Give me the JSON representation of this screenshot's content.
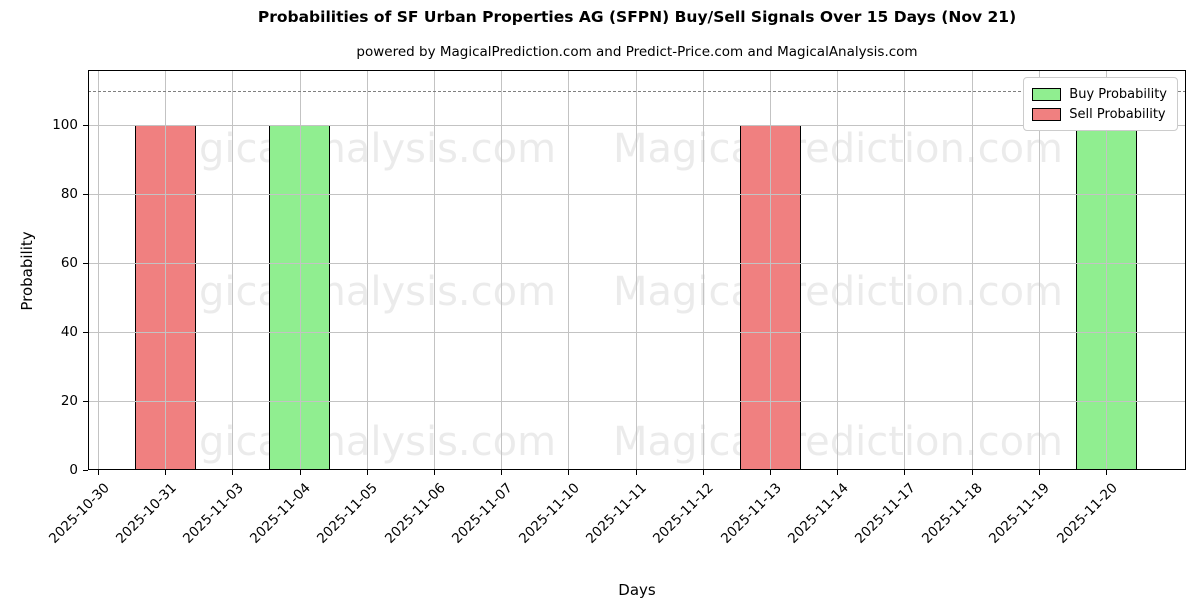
{
  "chart_data": {
    "type": "bar",
    "title": "Probabilities of SF Urban Properties AG (SFPN) Buy/Sell Signals Over 15 Days (Nov 21)",
    "subtitle": "powered by MagicalPrediction.com and Predict-Price.com and MagicalAnalysis.com",
    "xlabel": "Days",
    "ylabel": "Probability",
    "categories": [
      "2025-10-30",
      "2025-10-31",
      "2025-11-03",
      "2025-11-04",
      "2025-11-05",
      "2025-11-06",
      "2025-11-07",
      "2025-11-10",
      "2025-11-11",
      "2025-11-12",
      "2025-11-13",
      "2025-11-14",
      "2025-11-17",
      "2025-11-18",
      "2025-11-19",
      "2025-11-20"
    ],
    "series": [
      {
        "name": "Buy Probability",
        "color": "#90EE90",
        "values": [
          0,
          0,
          0,
          100,
          0,
          0,
          0,
          0,
          0,
          0,
          0,
          0,
          0,
          0,
          0,
          100
        ]
      },
      {
        "name": "Sell Probability",
        "color": "#F08080",
        "values": [
          0,
          100,
          0,
          0,
          0,
          0,
          0,
          0,
          0,
          0,
          100,
          0,
          0,
          0,
          0,
          0
        ]
      }
    ],
    "yticks": [
      0,
      20,
      40,
      60,
      80,
      100
    ],
    "ylim": [
      0,
      116
    ],
    "threshold_line": {
      "value": 110,
      "style": "dashed",
      "color": "#7f7f7f"
    },
    "grid": true,
    "legend_position": "upper right",
    "bar_edge_color": "#000000",
    "watermarks": [
      "MagicalAnalysis.com",
      "MagicalPrediction.com"
    ]
  }
}
